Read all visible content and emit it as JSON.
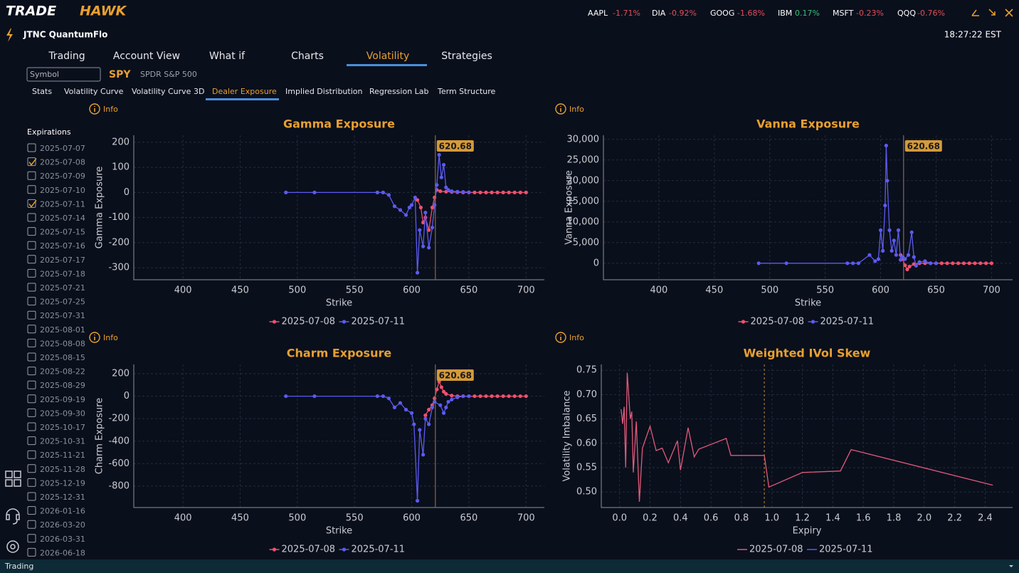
{
  "header": {
    "logo_a": "TRADE",
    "logo_b": "HAWK",
    "account": "JTNC QuantumFlo",
    "clock": "18:27:22 EST",
    "tickers": [
      {
        "symbol": "AAPL",
        "change": "-1.71%"
      },
      {
        "symbol": "DIA",
        "change": "-0.92%"
      },
      {
        "symbol": "GOOG",
        "change": "-1.68%"
      },
      {
        "symbol": "IBM",
        "change": "0.17%"
      },
      {
        "symbol": "MSFT",
        "change": "-0.23%"
      },
      {
        "symbol": "QQQ",
        "change": "-0.76%"
      }
    ]
  },
  "tabs": {
    "items": [
      "Trading",
      "Account View",
      "What if",
      "Charts",
      "Volatility",
      "Strategies"
    ],
    "active": 4
  },
  "symbol_bar": {
    "placeholder": "Symbol",
    "symbol": "SPY",
    "description": "SPDR S&P 500"
  },
  "subtabs": {
    "items": [
      "Stats",
      "Volatility Curve",
      "Volatility Curve 3D",
      "Dealer Exposure",
      "Implied Distribution",
      "Regression Lab",
      "Term Structure"
    ],
    "active": 3
  },
  "expirations": {
    "title": "Expirations",
    "items": [
      {
        "label": "2025-07-07",
        "checked": false
      },
      {
        "label": "2025-07-08",
        "checked": true
      },
      {
        "label": "2025-07-09",
        "checked": false
      },
      {
        "label": "2025-07-10",
        "checked": false
      },
      {
        "label": "2025-07-11",
        "checked": true
      },
      {
        "label": "2025-07-14",
        "checked": false
      },
      {
        "label": "2025-07-15",
        "checked": false
      },
      {
        "label": "2025-07-16",
        "checked": false
      },
      {
        "label": "2025-07-17",
        "checked": false
      },
      {
        "label": "2025-07-18",
        "checked": false
      },
      {
        "label": "2025-07-21",
        "checked": false
      },
      {
        "label": "2025-07-25",
        "checked": false
      },
      {
        "label": "2025-07-31",
        "checked": false
      },
      {
        "label": "2025-08-01",
        "checked": false
      },
      {
        "label": "2025-08-08",
        "checked": false
      },
      {
        "label": "2025-08-15",
        "checked": false
      },
      {
        "label": "2025-08-22",
        "checked": false
      },
      {
        "label": "2025-08-29",
        "checked": false
      },
      {
        "label": "2025-09-19",
        "checked": false
      },
      {
        "label": "2025-09-30",
        "checked": false
      },
      {
        "label": "2025-10-17",
        "checked": false
      },
      {
        "label": "2025-10-31",
        "checked": false
      },
      {
        "label": "2025-11-21",
        "checked": false
      },
      {
        "label": "2025-11-28",
        "checked": false
      },
      {
        "label": "2025-12-19",
        "checked": false
      },
      {
        "label": "2025-12-31",
        "checked": false
      },
      {
        "label": "2026-01-16",
        "checked": false
      },
      {
        "label": "2026-03-20",
        "checked": false
      },
      {
        "label": "2026-03-31",
        "checked": false
      },
      {
        "label": "2026-06-18",
        "checked": false
      }
    ]
  },
  "status": "Trading",
  "chart_data": [
    {
      "type": "line",
      "info": "Info",
      "title": "Gamma Exposure",
      "x_label": "Strike",
      "y_label": "Gamma Exposure",
      "markers": true,
      "grid": true,
      "xlim": [
        357,
        716
      ],
      "xticks": [
        400,
        450,
        500,
        550,
        600,
        650,
        700
      ],
      "ylim": [
        -348,
        228
      ],
      "yticks": [
        -300,
        -200,
        -100,
        0,
        100,
        200
      ],
      "spot": 620.68,
      "series": [
        {
          "name": "2025-07-08",
          "color": "#f0506e",
          "x": [
            605,
            608,
            610,
            612,
            615,
            618,
            620,
            622,
            625,
            630,
            635,
            640,
            645,
            650,
            655,
            660,
            665,
            670,
            675,
            680,
            685,
            690,
            695,
            700
          ],
          "values": [
            -30,
            -60,
            -120,
            -100,
            -150,
            -60,
            -20,
            10,
            5,
            3,
            2,
            1,
            0,
            0,
            0,
            0,
            0,
            0,
            0,
            0,
            0,
            0,
            0,
            0
          ]
        },
        {
          "name": "2025-07-11",
          "color": "#5b5bf0",
          "x": [
            490,
            515,
            570,
            575,
            580,
            585,
            590,
            595,
            598,
            600,
            603,
            605,
            607,
            610,
            612,
            615,
            618,
            620,
            622,
            624,
            626,
            628,
            630,
            632,
            635,
            640,
            645,
            650
          ],
          "values": [
            0,
            0,
            0,
            0,
            -10,
            -55,
            -70,
            -90,
            -60,
            -50,
            -20,
            -320,
            -150,
            -215,
            -80,
            -220,
            -140,
            -50,
            30,
            150,
            60,
            110,
            20,
            10,
            5,
            3,
            2,
            1
          ]
        }
      ]
    },
    {
      "type": "line",
      "info": "Info",
      "title": "Vanna Exposure",
      "x_label": "Strike",
      "y_label": "Vanna Exposure",
      "markers": true,
      "grid": true,
      "xlim": [
        350,
        719
      ],
      "xticks": [
        400,
        450,
        500,
        550,
        600,
        650,
        700
      ],
      "ylim": [
        -4000,
        31000
      ],
      "yticks": [
        0,
        {
          "value": 5000,
          "label": "5,000"
        },
        {
          "value": 10000,
          "label": "10,000"
        },
        {
          "value": 15000,
          "label": "15,000"
        },
        {
          "value": 20000,
          "label": "20,000"
        },
        {
          "value": 25000,
          "label": "25,000"
        },
        {
          "value": 30000,
          "label": "30,000"
        }
      ],
      "spot": 620.68,
      "series": [
        {
          "name": "2025-07-08",
          "color": "#f0506e",
          "x": [
            618,
            620,
            622,
            624,
            626,
            630,
            635,
            640,
            645,
            650,
            655,
            660,
            665,
            670,
            675,
            680,
            685,
            690,
            695,
            700
          ],
          "values": [
            2000,
            1000,
            -500,
            -1500,
            -800,
            -200,
            0,
            0,
            0,
            0,
            0,
            0,
            0,
            0,
            0,
            0,
            0,
            0,
            0,
            0
          ]
        },
        {
          "name": "2025-07-11",
          "color": "#5b5bf0",
          "x": [
            490,
            515,
            570,
            575,
            580,
            590,
            595,
            598,
            600,
            602,
            604,
            605,
            606,
            608,
            610,
            612,
            614,
            616,
            618,
            620,
            622,
            625,
            628,
            630,
            632,
            635,
            640,
            645,
            650
          ],
          "values": [
            0,
            0,
            0,
            0,
            0,
            2000,
            500,
            1000,
            8000,
            3000,
            14000,
            28500,
            20000,
            8000,
            3000,
            5500,
            2000,
            8000,
            800,
            1500,
            1000,
            2000,
            7500,
            1500,
            -600,
            300,
            500,
            0,
            0
          ]
        }
      ]
    },
    {
      "type": "line",
      "info": "Info",
      "title": "Charm Exposure",
      "x_label": "Strike",
      "y_label": "Charm Exposure",
      "markers": true,
      "grid": true,
      "xlim": [
        357,
        716
      ],
      "xticks": [
        400,
        450,
        500,
        550,
        600,
        650,
        700
      ],
      "ylim": [
        -990,
        282
      ],
      "yticks": [
        -800,
        -600,
        -400,
        -200,
        0,
        200
      ],
      "spot": 620.68,
      "series": [
        {
          "name": "2025-07-08",
          "color": "#f0506e",
          "x": [
            612,
            615,
            618,
            620,
            622,
            624,
            626,
            628,
            630,
            635,
            640,
            645,
            650,
            655,
            660,
            665,
            670,
            675,
            680,
            685,
            690,
            695,
            700
          ],
          "values": [
            -170,
            -120,
            -80,
            -20,
            60,
            130,
            80,
            40,
            20,
            5,
            0,
            0,
            0,
            0,
            0,
            0,
            0,
            0,
            0,
            0,
            0,
            0,
            0
          ]
        },
        {
          "name": "2025-07-11",
          "color": "#5b5bf0",
          "x": [
            490,
            515,
            570,
            575,
            580,
            585,
            590,
            595,
            600,
            602,
            605,
            607,
            610,
            612,
            615,
            618,
            620,
            625,
            628,
            630,
            632,
            635,
            640,
            645,
            650
          ],
          "values": [
            0,
            0,
            0,
            0,
            -20,
            -100,
            -60,
            -120,
            -150,
            -250,
            -930,
            -300,
            -520,
            -200,
            -250,
            -100,
            -50,
            -80,
            -150,
            -100,
            -50,
            -30,
            -10,
            0,
            0
          ]
        }
      ]
    },
    {
      "type": "line",
      "info": "Info",
      "title": "Weighted IVol Skew",
      "x_label": "Expiry",
      "y_label": "Volatility Imbalance",
      "markers": false,
      "grid": true,
      "xlim": [
        -0.12,
        2.58
      ],
      "xticks": [
        {
          "value": 0,
          "label": "0.0"
        },
        0.2,
        0.4,
        0.6,
        0.8,
        {
          "value": 1,
          "label": "1.0"
        },
        1.2,
        1.4,
        1.6,
        1.8,
        {
          "value": 2,
          "label": "2.0"
        },
        2.2,
        2.4
      ],
      "ylim": [
        0.468,
        0.762
      ],
      "yticks": [
        {
          "value": 0.5,
          "label": "0.50"
        },
        0.55,
        {
          "value": 0.6,
          "label": "0.60"
        },
        0.65,
        {
          "value": 0.7,
          "label": "0.70"
        },
        0.75
      ],
      "vline": 0.95,
      "series": [
        {
          "name": "2025-07-08",
          "color": "#e05a7a",
          "x": [
            0.01,
            0.02,
            0.03,
            0.04,
            0.05,
            0.06,
            0.07,
            0.08,
            0.09,
            0.11,
            0.13,
            0.15,
            0.2,
            0.24,
            0.28,
            0.32,
            0.38,
            0.4,
            0.45,
            0.49,
            0.52,
            0.7,
            0.73,
            0.95,
            0.98,
            1.2,
            1.45,
            1.52,
            2.45
          ],
          "values": [
            0.67,
            0.64,
            0.675,
            0.55,
            0.745,
            0.7,
            0.65,
            0.665,
            0.54,
            0.645,
            0.48,
            0.59,
            0.635,
            0.585,
            0.59,
            0.56,
            0.605,
            0.545,
            0.632,
            0.572,
            0.588,
            0.61,
            0.575,
            0.575,
            0.51,
            0.54,
            0.543,
            0.587,
            0.514
          ]
        },
        {
          "name": "2025-07-11",
          "color": "#5b5bf0",
          "x": [],
          "values": []
        }
      ]
    }
  ]
}
